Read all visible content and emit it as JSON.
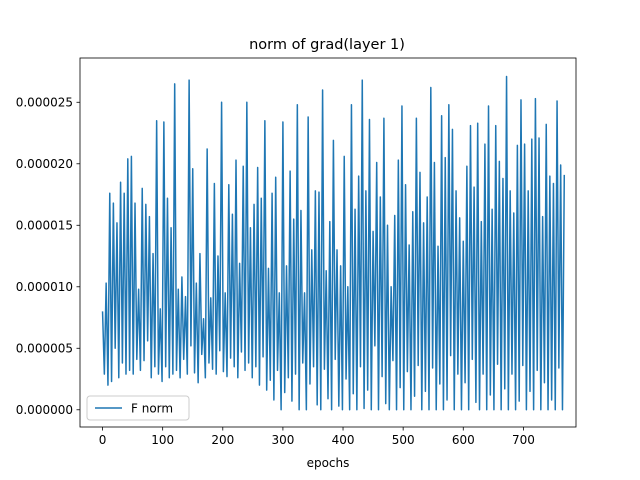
{
  "chart_data": {
    "type": "line",
    "title": "norm of grad(layer 1)",
    "xlabel": "epochs",
    "ylabel": "",
    "xlim": [
      -37.5,
      787.5
    ],
    "ylim": [
      -1.4e-06,
      2.86e-05
    ],
    "x_ticks": [
      0,
      100,
      200,
      300,
      400,
      500,
      600,
      700
    ],
    "x_tick_labels": [
      "0",
      "100",
      "200",
      "300",
      "400",
      "500",
      "600",
      "700"
    ],
    "y_ticks": [
      0.0,
      5e-06,
      1e-05,
      1.5e-05,
      2e-05,
      2.5e-05
    ],
    "y_tick_labels": [
      "0.000000",
      "0.000005",
      "0.000010",
      "0.000015",
      "0.000020",
      "0.000025"
    ],
    "grid": false,
    "legend_position": "lower-left",
    "series": [
      {
        "name": "F norm",
        "color": "#1f77b4",
        "x_step": 3,
        "values": [
          8e-06,
          2.9e-06,
          1.03e-05,
          2e-06,
          1.76e-05,
          2.3e-06,
          1.68e-05,
          5e-06,
          1.52e-05,
          2.6e-06,
          1.85e-05,
          3.8e-06,
          1.76e-05,
          2.9e-06,
          2.04e-05,
          3.2e-06,
          2.06e-05,
          2.9e-06,
          1.68e-05,
          4.1e-06,
          9.8e-06,
          3.2e-06,
          1.8e-05,
          4e-06,
          1.67e-05,
          5.6e-06,
          1.57e-05,
          2.6e-06,
          1.27e-05,
          3.5e-06,
          2.35e-05,
          2.9e-06,
          8.2e-06,
          2.3e-06,
          2.34e-05,
          3.5e-06,
          1.72e-05,
          2.6e-06,
          1.48e-05,
          2.9e-06,
          2.65e-05,
          3.2e-06,
          9.8e-06,
          2.6e-06,
          1.08e-05,
          4.1e-06,
          9.2e-06,
          2.9e-06,
          2.68e-05,
          5.2e-06,
          1.96e-05,
          3e-06,
          1.03e-05,
          2.2e-06,
          1.27e-05,
          4.5e-06,
          7.4e-06,
          2.6e-06,
          2.12e-05,
          3.8e-06,
          9.1e-06,
          3.3e-06,
          1.84e-05,
          2.9e-06,
          1.25e-05,
          4.8e-06,
          2.5e-05,
          3.1e-06,
          9.5e-06,
          2.7e-06,
          1.83e-05,
          4.2e-06,
          1.59e-05,
          3.5e-06,
          2.03e-05,
          2.6e-06,
          1.19e-05,
          4.7e-06,
          1.98e-05,
          3.2e-06,
          2.5e-05,
          3.8e-06,
          1.48e-05,
          2.6e-06,
          1.67e-05,
          3.5e-06,
          1.97e-05,
          2e-06,
          1.72e-05,
          4.3e-06,
          2.35e-05,
          1.6e-06,
          1.15e-05,
          2.4e-06,
          1.76e-05,
          8e-07,
          1.89e-05,
          3.2e-06,
          9.5e-06,
          0.0,
          2.34e-05,
          1.4e-06,
          1.17e-05,
          2.6e-06,
          1.94e-05,
          7e-07,
          1.55e-05,
          2.9e-06,
          2.48e-05,
          0.0,
          1.62e-05,
          3.8e-06,
          9.5e-06,
          0.0,
          2.38e-05,
          2.1e-06,
          1.3e-05,
          3.5e-06,
          1.78e-05,
          4e-07,
          1.77e-05,
          0.0,
          2.6e-05,
          3.3e-06,
          1.13e-05,
          9e-07,
          1.53e-05,
          0.0,
          2.19e-05,
          4.1e-06,
          1.3e-05,
          3e-07,
          1.17e-05,
          0.0,
          2.06e-05,
          2.5e-06,
          1e-05,
          0.0,
          2.48e-05,
          1.3e-06,
          1.63e-05,
          0.0,
          1.9e-05,
          3.5e-06,
          2.68e-05,
          1e-07,
          1.78e-05,
          1.6e-06,
          2.36e-05,
          0.0,
          1.45e-05,
          5.2e-06,
          2.01e-05,
          0.0,
          1.73e-05,
          2.7e-06,
          2.37e-05,
          5e-07,
          1.5e-05,
          0.0,
          1e-05,
          4e-06,
          1.58e-05,
          0.0,
          2.03e-05,
          1.8e-06,
          2.47e-05,
          0.0,
          1.83e-05,
          3.1e-06,
          1.34e-05,
          0.0,
          1.61e-05,
          1.1e-06,
          2.37e-05,
          3.6e-06,
          1.93e-05,
          0.0,
          1.52e-05,
          1.5e-06,
          1.73e-05,
          0.0,
          2.62e-05,
          3.4e-06,
          2.01e-05,
          0.0,
          1.33e-05,
          2.1e-06,
          2.39e-05,
          0.0,
          2.05e-05,
          8e-07,
          2.48e-05,
          4.4e-06,
          2.28e-05,
          0.0,
          1.78e-05,
          2.9e-06,
          1.56e-05,
          0.0,
          1.37e-05,
          2.2e-06,
          1.98e-05,
          0.0,
          2.31e-05,
          4.1e-06,
          1.81e-05,
          6e-07,
          2.33e-05,
          0.0,
          1.53e-05,
          2.9e-06,
          2.16e-05,
          0.0,
          2.47e-05,
          1.2e-06,
          1.63e-05,
          0.0,
          2.31e-05,
          3.7e-06,
          2.02e-05,
          0.0,
          1.88e-05,
          1.7e-06,
          2.71e-05,
          0.0,
          1.78e-05,
          2.9e-06,
          1.6e-05,
          0.0,
          2.15e-05,
          7e-07,
          2.52e-05,
          3.6e-06,
          2.16e-05,
          0.0,
          1.78e-05,
          1.5e-06,
          2.2e-05,
          0.0,
          2.53e-05,
          3.2e-06,
          2.21e-05,
          0.0,
          1.57e-05,
          2.2e-06,
          2.32e-05,
          0.0,
          1.9e-05,
          8e-07,
          1.84e-05,
          0.0,
          2.51e-05,
          3.4e-06,
          1.99e-05,
          0.0,
          1.91e-05
        ]
      }
    ]
  }
}
